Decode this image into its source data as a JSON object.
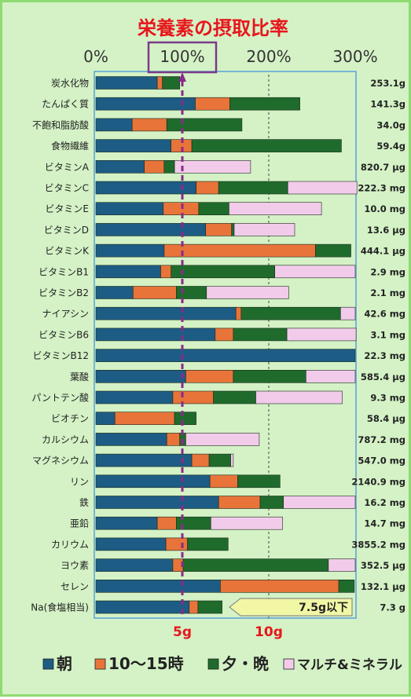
{
  "chart_data": {
    "type": "bar",
    "stacked": true,
    "orientation": "horizontal",
    "title": "栄養素の摂取比率",
    "x_ticks": [
      "0%",
      "100%",
      "200%",
      "300%"
    ],
    "xlim": [
      0,
      300
    ],
    "bottom_labels": [
      "5g",
      "10g"
    ],
    "legend": {
      "placement": "bottom"
    },
    "colors": {
      "朝": "#1d5c84",
      "10〜15時": "#e8743a",
      "夕・晩": "#1f6b2c",
      "マルチ&ミネラル": "#f2cbea"
    },
    "series_names": [
      "朝",
      "10〜15時",
      "夕・晩",
      "マルチ&ミネラル"
    ],
    "categories": [
      {
        "label": "炭水化物",
        "value": "253.1g",
        "values": [
          71,
          6,
          20,
          0
        ]
      },
      {
        "label": "たんぱく質",
        "value": "141.3g",
        "values": [
          115,
          40,
          81,
          0
        ]
      },
      {
        "label": "不飽和脂肪酸",
        "value": "34.0g",
        "values": [
          42,
          40,
          87,
          0
        ]
      },
      {
        "label": "食物繊維",
        "value": "59.4g",
        "values": [
          87,
          24,
          173,
          0
        ]
      },
      {
        "label": "ビタミンA",
        "value": "820.7 μg",
        "values": [
          56,
          23,
          12,
          88
        ]
      },
      {
        "label": "ビタミンC",
        "value": "222.3 mg",
        "values": [
          116,
          26,
          80,
          80
        ]
      },
      {
        "label": "ビタミンE",
        "value": "10.0 mg",
        "values": [
          78,
          41,
          35,
          107
        ]
      },
      {
        "label": "ビタミンD",
        "value": "13.6 μg",
        "values": [
          127,
          30,
          3,
          70
        ]
      },
      {
        "label": "ビタミンK",
        "value": "444.1 μg",
        "values": [
          79,
          175,
          41,
          0
        ]
      },
      {
        "label": "ビタミンB1",
        "value": "2.9 mg",
        "values": [
          75,
          12,
          120,
          93
        ]
      },
      {
        "label": "ビタミンB2",
        "value": "2.1 mg",
        "values": [
          43,
          50,
          35,
          95
        ]
      },
      {
        "label": "ナイアシン",
        "value": "42.6 mg",
        "values": [
          162,
          6,
          115,
          17
        ]
      },
      {
        "label": "ビタミンB6",
        "value": "3.1 mg",
        "values": [
          138,
          21,
          62,
          80
        ]
      },
      {
        "label": "ビタミンB12",
        "value": "22.3 mg",
        "values": [
          300,
          0,
          0,
          0
        ]
      },
      {
        "label": "葉酸",
        "value": "585.4 μg",
        "values": [
          104,
          55,
          84,
          57
        ]
      },
      {
        "label": "パントテン酸",
        "value": "9.3 mg",
        "values": [
          89,
          47,
          49,
          100
        ]
      },
      {
        "label": "ビオチン",
        "value": "58.4 μg",
        "values": [
          22,
          69,
          25,
          0
        ]
      },
      {
        "label": "カルシウム",
        "value": "787.2 mg",
        "values": [
          82,
          15,
          7,
          85
        ]
      },
      {
        "label": "マグネシウム",
        "value": "547.0 mg",
        "values": [
          111,
          20,
          25,
          3
        ]
      },
      {
        "label": "リン",
        "value": "2140.9 mg",
        "values": [
          132,
          32,
          49,
          0
        ]
      },
      {
        "label": "鉄",
        "value": "16.2 mg",
        "values": [
          142,
          48,
          27,
          83
        ]
      },
      {
        "label": "亜鉛",
        "value": "14.7 mg",
        "values": [
          71,
          22,
          40,
          83
        ]
      },
      {
        "label": "カリウム",
        "value": "3855.2 mg",
        "values": [
          81,
          25,
          47,
          0
        ]
      },
      {
        "label": "ヨウ素",
        "value": "352.5 μg",
        "values": [
          89,
          12,
          168,
          31
        ]
      },
      {
        "label": "セレン",
        "value": "132.1 μg",
        "values": [
          144,
          137,
          18,
          0
        ]
      },
      {
        "label": "Na(食塩相当)",
        "value": "7.3 g",
        "values": [
          108,
          10,
          28,
          0
        ]
      }
    ],
    "callout": "7.5g以下"
  }
}
